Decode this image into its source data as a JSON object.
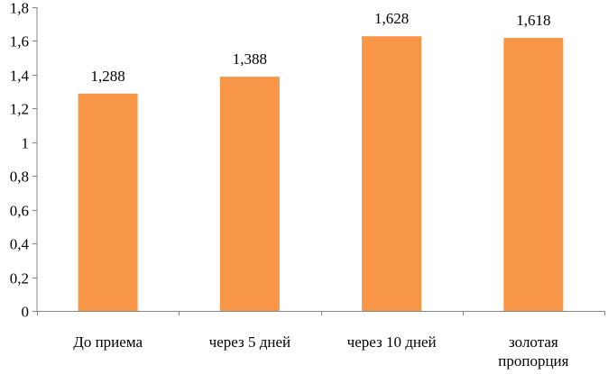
{
  "chart_data": {
    "type": "bar",
    "categories": [
      [
        "До приема"
      ],
      [
        "через 5 дней"
      ],
      [
        "через 10 дней"
      ],
      [
        "золотая",
        "пропорция"
      ]
    ],
    "values": [
      1.288,
      1.388,
      1.628,
      1.618
    ],
    "value_labels": [
      "1,288",
      "1,388",
      "1,628",
      "1,618"
    ],
    "y_ticks": [
      0,
      0.2,
      0.4,
      0.6,
      0.8,
      1,
      1.2,
      1.4,
      1.6,
      1.8
    ],
    "y_tick_labels": [
      "0",
      "0,2",
      "0,4",
      "0,6",
      "0,8",
      "1",
      "1,2",
      "1,4",
      "1,6",
      "1,8"
    ],
    "ylim": [
      0,
      1.8
    ],
    "title": "",
    "xlabel": "",
    "ylabel": "",
    "grid": false,
    "legend": "none",
    "colors": {
      "bar": "#F79646",
      "axis": "#868686",
      "text": "#000000"
    }
  }
}
